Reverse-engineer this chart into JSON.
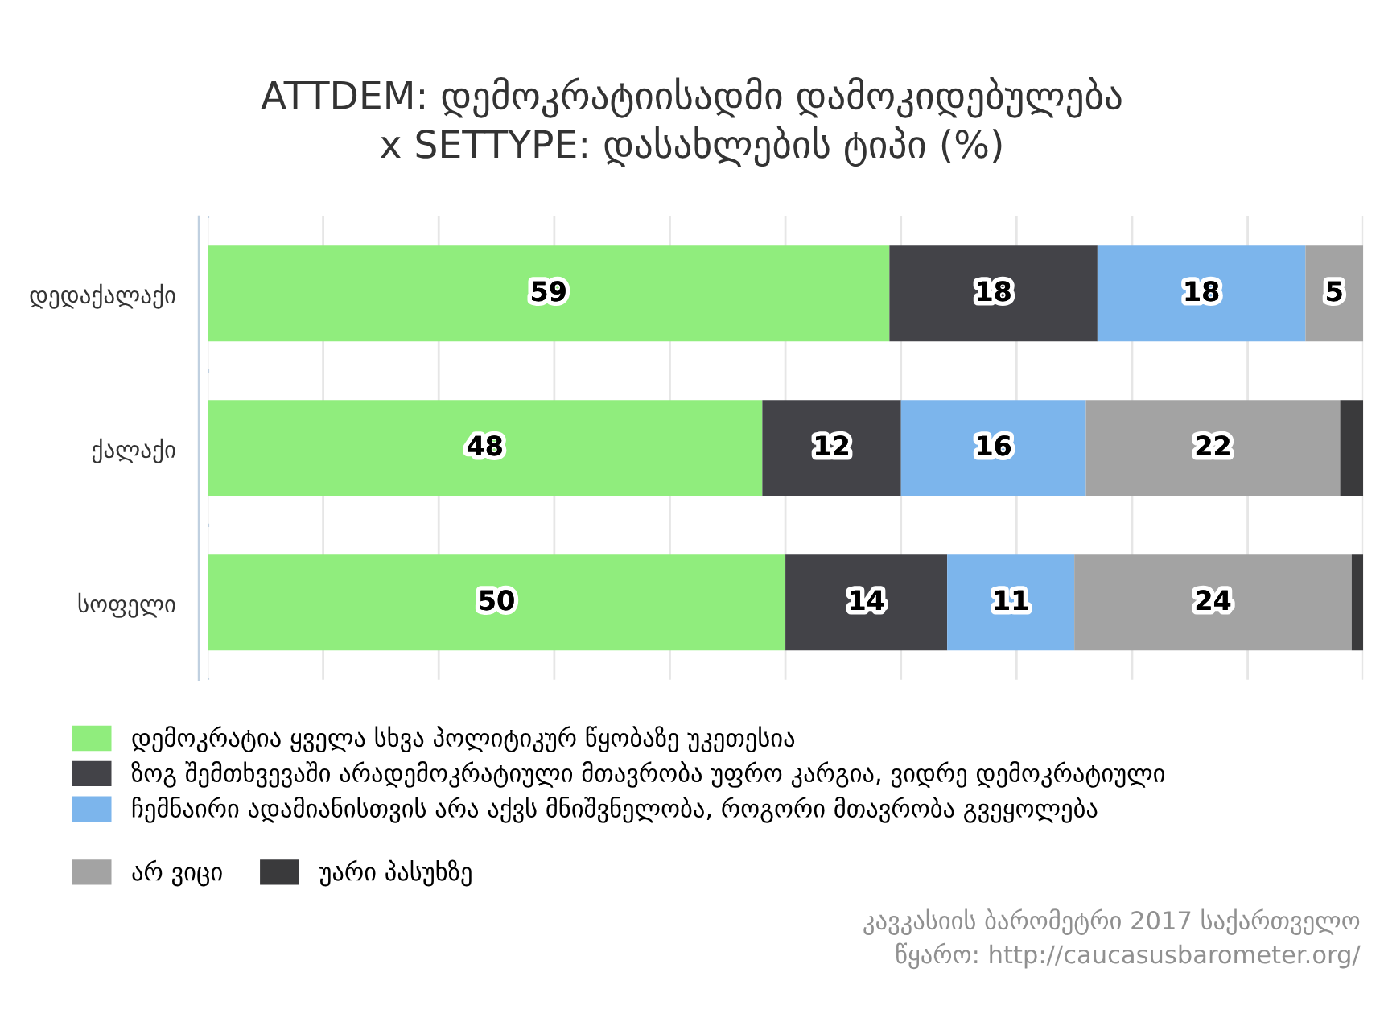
{
  "chart_data": {
    "type": "bar",
    "orientation": "horizontal",
    "stacked": true,
    "title": "ATTDEM: დემოკრატიისადმი დამოკიდებულება\nx SETTYPE: დასახლების ტიპი (%)",
    "categories": [
      "დედაქალაქი",
      "ქალაქი",
      "სოფელი"
    ],
    "series": [
      {
        "name": "დემოკრატია ყველა სხვა პოლიტიკურ წყობაზე უკეთესია",
        "color": "#90ed7d",
        "values": [
          59,
          48,
          50
        ],
        "value_labels": [
          "59",
          "48",
          "50"
        ]
      },
      {
        "name": "ზოგ შემთხვევაში არადემოკრატიული მთავრობა უფრო კარგია, ვიდრე დემოკრატიული",
        "color": "#434348",
        "values": [
          18,
          12,
          14
        ],
        "value_labels": [
          "18",
          "12",
          "14"
        ]
      },
      {
        "name": "ჩემნაირი ადამიანისთვის არა აქვს მნიშვნელობა, როგორი მთავრობა გვეყოლება",
        "color": "#7cb5ec",
        "values": [
          18,
          16,
          11
        ],
        "value_labels": [
          "18",
          "16",
          "11"
        ]
      },
      {
        "name": "არ ვიცი",
        "color": "#a3a3a3",
        "values": [
          5,
          22,
          24
        ],
        "value_labels": [
          "5",
          "22",
          "24"
        ]
      },
      {
        "name": "უარი პასუხზე",
        "color": "#3a3a3c",
        "values": [
          0,
          2,
          1
        ],
        "value_labels": [
          null,
          null,
          null
        ]
      }
    ],
    "xlim": [
      0,
      100
    ],
    "xticks": [
      {
        "value": 0,
        "label": null
      },
      {
        "value": 10,
        "label": null
      },
      {
        "value": 20,
        "label": null
      },
      {
        "value": 30,
        "label": null
      },
      {
        "value": 40,
        "label": null
      },
      {
        "value": 50,
        "label": null
      },
      {
        "value": 60,
        "label": null
      },
      {
        "value": 70,
        "label": null
      },
      {
        "value": 80,
        "label": null
      },
      {
        "value": 90,
        "label": null
      },
      {
        "value": 100,
        "label": null
      }
    ],
    "grid": "x",
    "legend": "bottom",
    "annotations": [
      "კავკასიის ბარომეტრი 2017 საქართველო",
      "წყარო: http://caucasusbarometer.org/"
    ]
  }
}
